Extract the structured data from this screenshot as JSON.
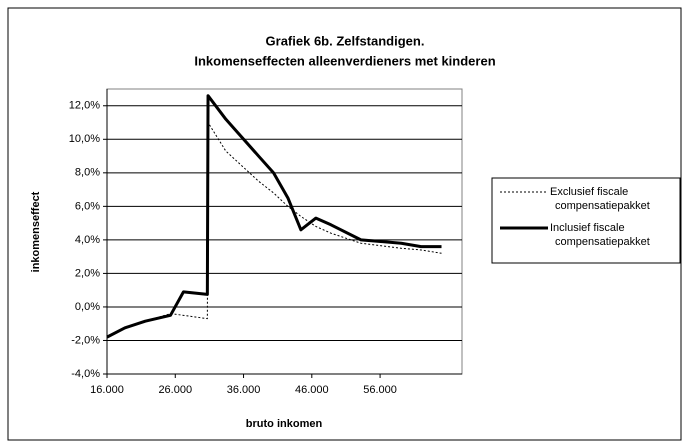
{
  "chart_data": {
    "type": "line",
    "title": [
      "Grafiek 6b. Zelfstandigen.",
      "Inkomenseffecten alleenverdieners met kinderen"
    ],
    "x_label": "bruto inkomen",
    "y_label": "inkomenseffect",
    "x": [
      16000,
      18600,
      21600,
      25300,
      27200,
      30700,
      30800,
      33400,
      38200,
      40400,
      42500,
      44400,
      46600,
      48800,
      53200,
      59100,
      62000,
      65000
    ],
    "series": [
      {
        "name": "Exclusief fiscale compensatiepakket",
        "color": "#000000",
        "dash": true,
        "values": [
          -1.8,
          -1.25,
          -0.85,
          -0.4,
          -0.5,
          -0.7,
          11.0,
          9.3,
          7.5,
          6.8,
          6.0,
          5.4,
          4.8,
          4.4,
          3.8,
          3.5,
          3.4,
          3.2
        ]
      },
      {
        "name": "Inclusief fiscale compensatiepakket",
        "color": "#000000",
        "dash": false,
        "values": [
          -1.8,
          -1.25,
          -0.85,
          -0.5,
          0.9,
          0.75,
          12.6,
          11.2,
          9.0,
          8.0,
          6.5,
          4.6,
          5.3,
          4.9,
          4.0,
          3.8,
          3.6,
          3.6
        ]
      }
    ],
    "xlim": [
      16000,
      68000
    ],
    "xticks": [
      {
        "value": 16000,
        "label": "16.000"
      },
      {
        "value": 26000,
        "label": "26.000"
      },
      {
        "value": 36000,
        "label": "36.000"
      },
      {
        "value": 46000,
        "label": "46.000"
      },
      {
        "value": 56000,
        "label": "56.000"
      }
    ],
    "ylim": [
      -4,
      13
    ],
    "yticks": [
      {
        "value": -4,
        "label": "-4,0%"
      },
      {
        "value": -2,
        "label": "-2,0%"
      },
      {
        "value": 0,
        "label": "0,0%"
      },
      {
        "value": 2,
        "label": "2,0%"
      },
      {
        "value": 4,
        "label": "4,0%"
      },
      {
        "value": 6,
        "label": "6,0%"
      },
      {
        "value": 8,
        "label": "8,0%"
      },
      {
        "value": 10,
        "label": "10,0%"
      },
      {
        "value": 12,
        "label": "12,0%"
      }
    ],
    "grid": true
  }
}
